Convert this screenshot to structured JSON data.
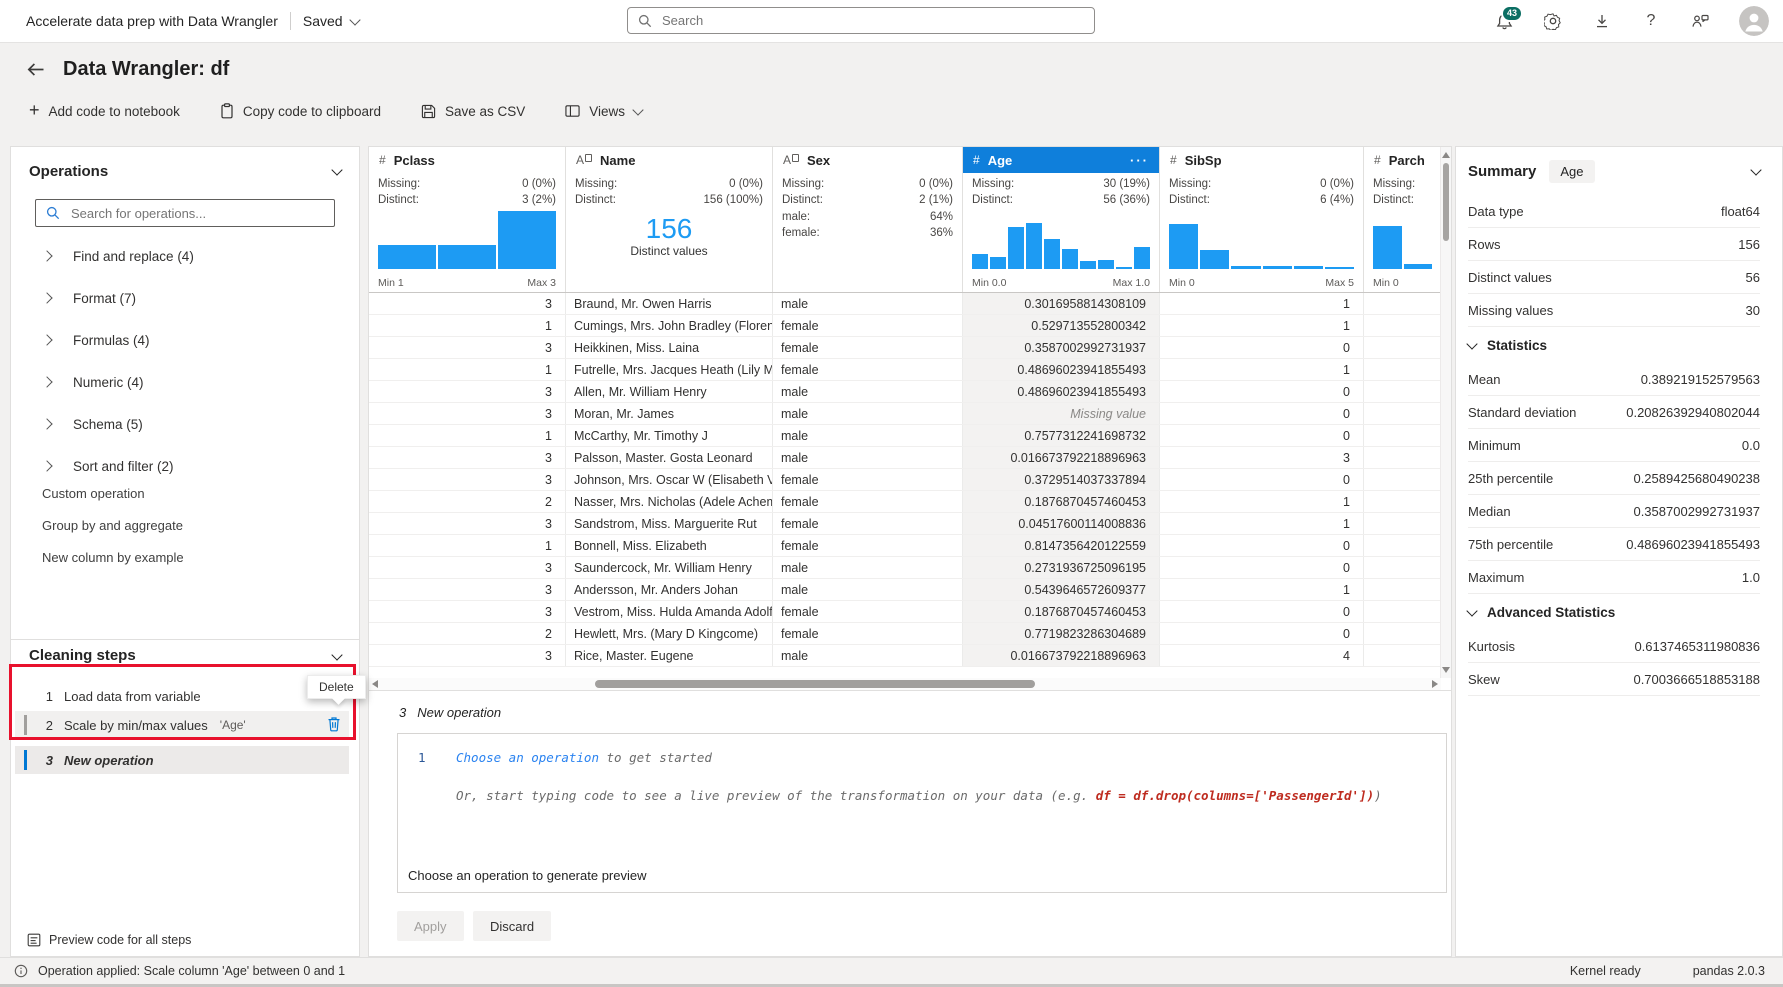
{
  "top_bar": {
    "title": "Accelerate data prep with Data Wrangler",
    "saved": "Saved",
    "search_placeholder": "Search",
    "notifications": "43"
  },
  "icons": {
    "plus": "+",
    "help": "?",
    "more": "···"
  },
  "header": {
    "title": "Data Wrangler: df"
  },
  "toolbar": {
    "add": "Add code to notebook",
    "copy": "Copy code to clipboard",
    "save": "Save as CSV",
    "views": "Views"
  },
  "operations": {
    "title": "Operations",
    "search_placeholder": "Search for operations...",
    "groups": [
      "Find and replace (4)",
      "Format (7)",
      "Formulas (4)",
      "Numeric (4)",
      "Schema (5)",
      "Sort and filter (2)"
    ],
    "links": [
      "Custom operation",
      "Group by and aggregate",
      "New column by example"
    ]
  },
  "cleaning": {
    "title": "Cleaning steps",
    "tooltip": "Delete",
    "preview": "Preview code for all steps",
    "steps": [
      {
        "num": "1",
        "label": "Load data from variable",
        "indicator": "",
        "detail": "",
        "show_delete": false,
        "emph": false,
        "shade": ""
      },
      {
        "num": "2",
        "label": "Scale by min/max values",
        "indicator": "gray",
        "detail": "'Age'",
        "show_delete": true,
        "emph": false,
        "shade": "shaded"
      },
      {
        "num": "3",
        "label": "New operation",
        "indicator": "blue",
        "detail": "",
        "show_delete": false,
        "emph": true,
        "shade": "active"
      }
    ]
  },
  "grid": {
    "labels": {
      "missing": "Missing:",
      "distinct": "Distinct:"
    },
    "missing_text": "Missing value",
    "columns": [
      {
        "name": "Pclass",
        "type": "number",
        "missing": "0 (0%)",
        "distinct": "3 (2%)",
        "min": "Min 1",
        "max": "Max 3",
        "hist": [
          42,
          42,
          100
        ]
      },
      {
        "name": "Name",
        "type": "text",
        "missing": "0 (0%)",
        "distinct": "156 (100%)",
        "min": "",
        "max": "",
        "big": "156",
        "big_label": "Distinct values"
      },
      {
        "name": "Sex",
        "type": "text",
        "missing": "0 (0%)",
        "distinct": "2 (1%)",
        "min": "",
        "max": "",
        "cats": [
          [
            "male:",
            "64%"
          ],
          [
            "female:",
            "36%"
          ]
        ]
      },
      {
        "name": "Age",
        "type": "number",
        "selected": true,
        "missing": "30 (19%)",
        "distinct": "56 (36%)",
        "min": "Min 0.0",
        "max": "Max 1.0",
        "hist": [
          26,
          20,
          72,
          80,
          52,
          35,
          14,
          16,
          4,
          38
        ]
      },
      {
        "name": "SibSp",
        "type": "number",
        "missing": "0 (0%)",
        "distinct": "6 (4%)",
        "min": "Min 0",
        "max": "Max 5",
        "hist": [
          78,
          33,
          6,
          5,
          5,
          4
        ]
      },
      {
        "name": "Parch",
        "type": "number",
        "missing": "",
        "distinct": "",
        "min": "Min 0",
        "max": "",
        "hist": [
          75,
          9
        ]
      }
    ],
    "rows": [
      [
        "3",
        "Braund, Mr. Owen Harris",
        "male",
        "0.3016958814308109",
        "1",
        ""
      ],
      [
        "1",
        "Cumings, Mrs. John Bradley (Florenc",
        "female",
        "0.529713552800342",
        "1",
        ""
      ],
      [
        "3",
        "Heikkinen, Miss. Laina",
        "female",
        "0.3587002992731937",
        "0",
        ""
      ],
      [
        "1",
        "Futrelle, Mrs. Jacques Heath (Lily Ma",
        "female",
        "0.48696023941855493",
        "1",
        ""
      ],
      [
        "3",
        "Allen, Mr. William Henry",
        "male",
        "0.48696023941855493",
        "0",
        ""
      ],
      [
        "3",
        "Moran, Mr. James",
        "male",
        "Missing value",
        "0",
        ""
      ],
      [
        "1",
        "McCarthy, Mr. Timothy J",
        "male",
        "0.7577312241698732",
        "0",
        ""
      ],
      [
        "3",
        "Palsson, Master. Gosta Leonard",
        "male",
        "0.016673792218896963",
        "3",
        ""
      ],
      [
        "3",
        "Johnson, Mrs. Oscar W (Elisabeth Vil",
        "female",
        "0.3729514037337894",
        "0",
        ""
      ],
      [
        "2",
        "Nasser, Mrs. Nicholas (Adele Achem",
        "female",
        "0.1876870457460453",
        "1",
        ""
      ],
      [
        "3",
        "Sandstrom, Miss. Marguerite Rut",
        "female",
        "0.04517600114008836",
        "1",
        ""
      ],
      [
        "1",
        "Bonnell, Miss. Elizabeth",
        "female",
        "0.8147356420122559",
        "0",
        ""
      ],
      [
        "3",
        "Saundercock, Mr. William Henry",
        "male",
        "0.2731936725096195",
        "0",
        ""
      ],
      [
        "3",
        "Andersson, Mr. Anders Johan",
        "male",
        "0.5439646572609377",
        "1",
        ""
      ],
      [
        "3",
        "Vestrom, Miss. Hulda Amanda Adolf",
        "female",
        "0.1876870457460453",
        "0",
        ""
      ],
      [
        "2",
        "Hewlett, Mrs. (Mary D Kingcome)",
        "female",
        "0.7719823286304689",
        "0",
        ""
      ],
      [
        "3",
        "Rice, Master. Eugene",
        "male",
        "0.016673792218896963",
        "4",
        ""
      ]
    ]
  },
  "summary": {
    "title": "Summary",
    "column_chip": "Age",
    "rows": [
      [
        "Data type",
        "float64"
      ],
      [
        "Rows",
        "156"
      ],
      [
        "Distinct values",
        "56"
      ],
      [
        "Missing values",
        "30"
      ]
    ],
    "stats_label": "Statistics",
    "stats": [
      [
        "Mean",
        "0.389219152579563"
      ],
      [
        "Standard deviation",
        "0.20826392940802044"
      ],
      [
        "Minimum",
        "0.0"
      ],
      [
        "25th percentile",
        "0.2589425680490238"
      ],
      [
        "Median",
        "0.3587002992731937"
      ],
      [
        "75th percentile",
        "0.48696023941855493"
      ],
      [
        "Maximum",
        "1.0"
      ]
    ],
    "adv_label": "Advanced Statistics",
    "advanced": [
      [
        "Kurtosis",
        "0.6137465311980836"
      ],
      [
        "Skew",
        "0.7003666518853188"
      ]
    ]
  },
  "editor": {
    "step_num": "3",
    "step_label": "New operation",
    "line_number": "1",
    "line1_link": "Choose an operation",
    "line1_rest": " to get started",
    "line2_pre": "Or, start typing code to see a live preview of the transformation on your data (e.g. ",
    "line2_code": "df = df.drop(columns=['PassengerId'])",
    "line2_post": ")",
    "footer": "Choose an operation to generate preview",
    "apply": "Apply",
    "discard": "Discard"
  },
  "status": {
    "message": "Operation applied: Scale column 'Age' between 0 and 1",
    "kernel": "Kernel ready",
    "pandas": "pandas 2.0.3"
  },
  "colors": {
    "accent": "#0078d4",
    "histogram": "#1d9bf3",
    "selected_header": "#0f7fdb",
    "annotation_red": "#e8112d",
    "badge": "#0b6e63",
    "gray_indicator": "#a19f9d"
  }
}
